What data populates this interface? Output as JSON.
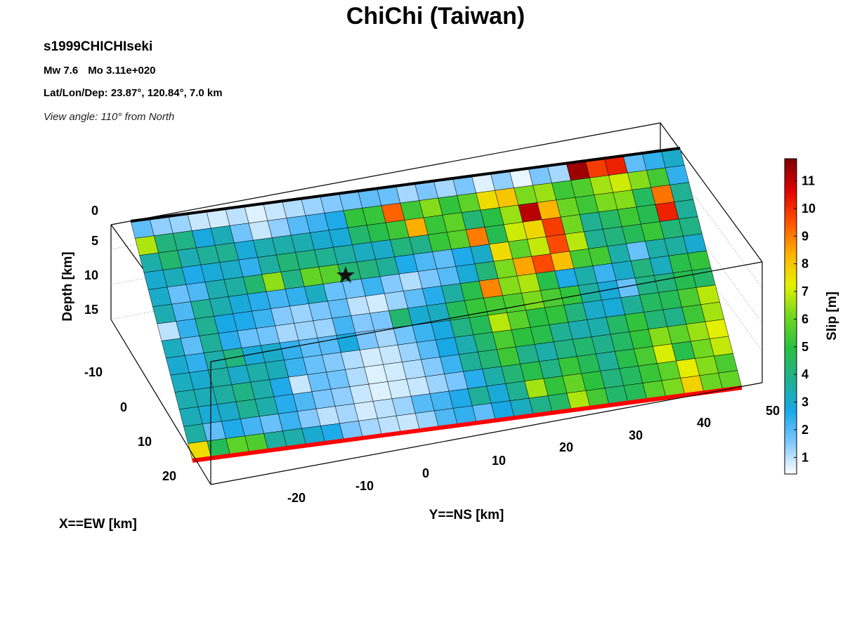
{
  "header": {
    "title": "ChiChi (Taiwan)",
    "event": "s1999CHICHIseki",
    "magnitude": "Mw 7.6",
    "moment": "Mo 3.11e+020",
    "location": "Lat/Lon/Dep: 23.87°, 120.84°, 7.0 km",
    "view_angle": "View angle: 110° from North"
  },
  "chart_data": {
    "type": "heatmap",
    "subtype": "3D fault-plane slip distribution",
    "title": "ChiChi (Taiwan)",
    "xlabel": "X==EW [km]",
    "ylabel": "Y==NS [km]",
    "zlabel": "Depth [km]",
    "colorbar_label": "Slip [m]",
    "x_ticks": [
      "-10",
      "0",
      "10",
      "20"
    ],
    "y_ticks": [
      "-20",
      "-10",
      "0",
      "10",
      "20",
      "30",
      "40",
      "50"
    ],
    "z_ticks": [
      "0",
      "5",
      "10",
      "15"
    ],
    "colorbar_ticks": [
      "1",
      "2",
      "3",
      "4",
      "5",
      "6",
      "7",
      "8",
      "9",
      "10",
      "11"
    ],
    "colorbar_range": [
      0.4,
      11.8
    ],
    "colormap": [
      "#ffffff",
      "#80c8ff",
      "#18a8e8",
      "#20b090",
      "#28c040",
      "#70d820",
      "#e6f000",
      "#ffb000",
      "#ff5000",
      "#e00000",
      "#7a0000"
    ],
    "hypocenter_marker": "star",
    "trace_color": "#ff0000",
    "grid_rows": 14,
    "grid_cols": 29,
    "slip_m": [
      [
        1.9,
        1.4,
        1.3,
        0.9,
        0.8,
        1.0,
        0.7,
        0.9,
        1.1,
        1.3,
        1.5,
        1.7,
        1.9,
        1.8,
        1.2,
        1.6,
        1.2,
        1.6,
        0.7,
        1.4,
        0.6,
        1.6,
        1.2,
        11.4,
        9.8,
        10.2,
        1.9,
        2.4,
        3.1
      ],
      [
        6.7,
        4.1,
        4.0,
        2.8,
        3.3,
        1.7,
        0.9,
        1.4,
        2.0,
        2.3,
        2.6,
        5.1,
        5.2,
        9.3,
        5.3,
        6.3,
        5.1,
        5.8,
        7.6,
        8.0,
        6.2,
        6.5,
        5.3,
        5.6,
        6.6,
        7.0,
        6.3,
        5.4,
        2.4
      ],
      [
        3.5,
        4.3,
        3.4,
        3.7,
        3.8,
        2.9,
        3.4,
        3.5,
        3.4,
        3.0,
        2.9,
        4.3,
        4.8,
        5.3,
        8.4,
        5.2,
        5.8,
        4.2,
        4.9,
        6.5,
        11.1,
        8.3,
        6.0,
        5.3,
        6.2,
        6.3,
        4.5,
        9.1,
        3.8
      ],
      [
        3.0,
        3.3,
        2.6,
        2.9,
        3.1,
        2.4,
        3.6,
        4.2,
        4.0,
        3.8,
        3.6,
        3.2,
        3.1,
        4.1,
        3.9,
        5.2,
        5.7,
        9.0,
        4.7,
        7.0,
        7.7,
        9.8,
        6.1,
        3.8,
        4.4,
        5.3,
        4.7,
        10.2,
        3.7
      ],
      [
        3.1,
        1.8,
        2.1,
        3.4,
        3.6,
        4.3,
        6.4,
        4.0,
        5.9,
        5.7,
        4.2,
        4.1,
        3.7,
        2.6,
        2.1,
        1.9,
        2.6,
        3.1,
        7.6,
        5.8,
        6.9,
        9.6,
        6.8,
        3.8,
        4.1,
        4.6,
        5.2,
        4.2,
        4.0
      ],
      [
        3.4,
        2.1,
        3.8,
        3.4,
        2.9,
        2.5,
        2.2,
        2.4,
        3.2,
        1.8,
        1.7,
        2.3,
        1.5,
        1.1,
        1.6,
        2.0,
        2.9,
        4.2,
        6.2,
        8.5,
        9.6,
        8.1,
        5.4,
        5.4,
        3.5,
        1.8,
        3.5,
        3.6,
        3.0
      ],
      [
        1.0,
        2.4,
        3.8,
        2.7,
        2.6,
        2.3,
        1.5,
        1.3,
        1.6,
        1.9,
        1.0,
        0.8,
        1.3,
        1.9,
        2.5,
        3.6,
        4.8,
        8.9,
        6.3,
        6.7,
        4.8,
        2.6,
        3.5,
        2.3,
        3.1,
        4.1,
        3.2,
        4.8,
        5.1
      ],
      [
        3.2,
        1.9,
        3.7,
        2.5,
        1.8,
        1.7,
        1.2,
        1.3,
        1.3,
        2.2,
        1.5,
        1.6,
        4.3,
        3.0,
        3.2,
        4.6,
        5.2,
        5.4,
        5.6,
        6.2,
        5.5,
        5.1,
        3.6,
        2.9,
        1.8,
        4.0,
        4.1,
        4.7,
        4.4
      ],
      [
        3.0,
        2.4,
        3.5,
        4.1,
        2.9,
        3.1,
        2.4,
        1.9,
        2.0,
        2.8,
        1.6,
        1.2,
        1.7,
        2.3,
        2.8,
        4.0,
        4.6,
        6.8,
        5.7,
        4.9,
        5.1,
        4.1,
        3.1,
        2.9,
        3.7,
        4.5,
        4.6,
        5.5,
        6.8
      ],
      [
        3.2,
        3.0,
        3.6,
        3.1,
        3.5,
        3.3,
        2.3,
        1.8,
        1.5,
        1.1,
        0.8,
        0.9,
        1.3,
        2.0,
        2.7,
        3.4,
        4.3,
        5.5,
        5.0,
        4.8,
        3.8,
        3.4,
        3.5,
        4.4,
        5.1,
        4.2,
        3.9,
        5.3,
        6.6
      ],
      [
        3.4,
        3.3,
        3.6,
        4.0,
        3.5,
        2.6,
        0.9,
        1.8,
        1.7,
        1.1,
        0.7,
        0.8,
        1.1,
        1.5,
        2.3,
        3.7,
        4.2,
        5.3,
        3.9,
        3.5,
        4.0,
        4.3,
        3.9,
        4.4,
        5.1,
        6.3,
        5.8,
        6.5,
        7.2
      ],
      [
        3.3,
        2.9,
        3.1,
        3.8,
        3.5,
        2.5,
        2.1,
        1.6,
        1.4,
        0.9,
        0.7,
        0.8,
        0.9,
        1.3,
        1.6,
        2.5,
        3.5,
        4.2,
        4.8,
        4.0,
        5.2,
        4.6,
        3.7,
        4.8,
        5.5,
        7.1,
        4.8,
        6.1,
        6.9
      ],
      [
        3.6,
        1.9,
        2.6,
        2.2,
        1.8,
        2.3,
        1.5,
        1.0,
        1.2,
        0.8,
        1.0,
        1.3,
        2.0,
        2.2,
        2.6,
        3.7,
        2.9,
        3.8,
        6.6,
        5.1,
        5.9,
        5.0,
        4.1,
        4.5,
        5.2,
        5.8,
        7.3,
        6.3,
        5.5
      ],
      [
        7.6,
        4.6,
        5.8,
        5.6,
        3.6,
        3.5,
        3.0,
        2.6,
        1.6,
        1.2,
        1.0,
        0.9,
        1.3,
        2.1,
        2.4,
        1.9,
        2.7,
        3.2,
        3.9,
        4.4,
        6.7,
        5.4,
        4.3,
        4.6,
        5.7,
        6.2,
        7.8,
        6.0,
        5.9
      ]
    ]
  }
}
